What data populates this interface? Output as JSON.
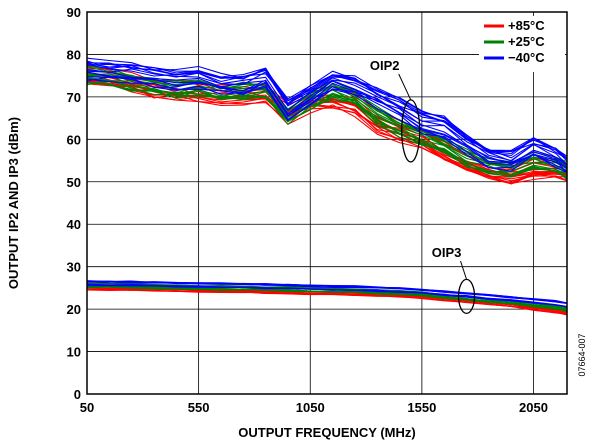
{
  "chart_data": {
    "type": "line",
    "title": "",
    "xlabel": "OUTPUT FREQUENCY (MHz)",
    "ylabel": "OUTPUT IP2 AND IP3 (dBm)",
    "xlim": [
      50,
      2200
    ],
    "ylim": [
      0,
      90
    ],
    "x_ticks": [
      50,
      550,
      1050,
      1550,
      2050
    ],
    "y_ticks": [
      0,
      10,
      20,
      30,
      40,
      50,
      60,
      70,
      80,
      90
    ],
    "grid": true,
    "legend_position": "top-right",
    "x": [
      50,
      150,
      250,
      350,
      450,
      550,
      650,
      750,
      850,
      950,
      1050,
      1150,
      1250,
      1350,
      1450,
      1550,
      1650,
      1750,
      1850,
      1950,
      2050,
      2150,
      2200
    ],
    "series": [
      {
        "name": "+85°C",
        "color": "#ff0000",
        "group": "OIP2",
        "values": [
          75,
          74.5,
          73.5,
          72,
          71.5,
          71,
          70,
          70.5,
          70.5,
          66,
          69,
          69.5,
          68,
          64,
          62,
          60,
          57,
          54.5,
          52.5,
          51.5,
          53,
          53,
          52.5
        ]
      },
      {
        "name": "+25°C",
        "color": "#008000",
        "group": "OIP2",
        "values": [
          75.5,
          75,
          74,
          73,
          72,
          72.5,
          71.5,
          71.5,
          72,
          66,
          69.5,
          72,
          70,
          66,
          63,
          61,
          59,
          56,
          54,
          53,
          55,
          54,
          53
        ]
      },
      {
        "name": "−40°C",
        "color": "#0000ff",
        "group": "OIP2",
        "values": [
          76.5,
          76,
          75.5,
          74.5,
          74,
          74.5,
          73,
          73,
          74.5,
          67,
          70.5,
          74,
          72.5,
          70,
          67,
          64,
          63,
          59,
          56,
          55,
          58,
          56,
          54
        ]
      },
      {
        "name": "+85°C",
        "color": "#ff0000",
        "group": "OIP3",
        "values": [
          25,
          25,
          24.9,
          24.8,
          24.7,
          24.6,
          24.5,
          24.4,
          24.3,
          24.2,
          24,
          23.9,
          23.8,
          23.6,
          23.4,
          23,
          22.5,
          22,
          21.5,
          21,
          20.3,
          19.6,
          19.2
        ]
      },
      {
        "name": "+25°C",
        "color": "#008000",
        "group": "OIP3",
        "values": [
          25.5,
          25.5,
          25.4,
          25.3,
          25.2,
          25.1,
          25,
          24.9,
          24.8,
          24.7,
          24.5,
          24.4,
          24.3,
          24.1,
          23.9,
          23.5,
          23,
          22.6,
          22.1,
          21.6,
          21,
          20.4,
          20
        ]
      },
      {
        "name": "−40°C",
        "color": "#0000ff",
        "group": "OIP3",
        "values": [
          26.1,
          26.1,
          26,
          25.9,
          25.8,
          25.7,
          25.6,
          25.5,
          25.4,
          25.3,
          25.1,
          25,
          24.9,
          24.7,
          24.5,
          24.2,
          23.8,
          23.4,
          22.9,
          22.5,
          22,
          21.4,
          21
        ]
      }
    ],
    "legend": [
      "+85°C",
      "+25°C",
      "−40°C"
    ],
    "annotations": [
      {
        "label": "OIP2",
        "x": 1500,
        "y": 62
      },
      {
        "label": "OIP3",
        "x": 1750,
        "y": 23
      }
    ],
    "figure_id": "07664-007"
  }
}
